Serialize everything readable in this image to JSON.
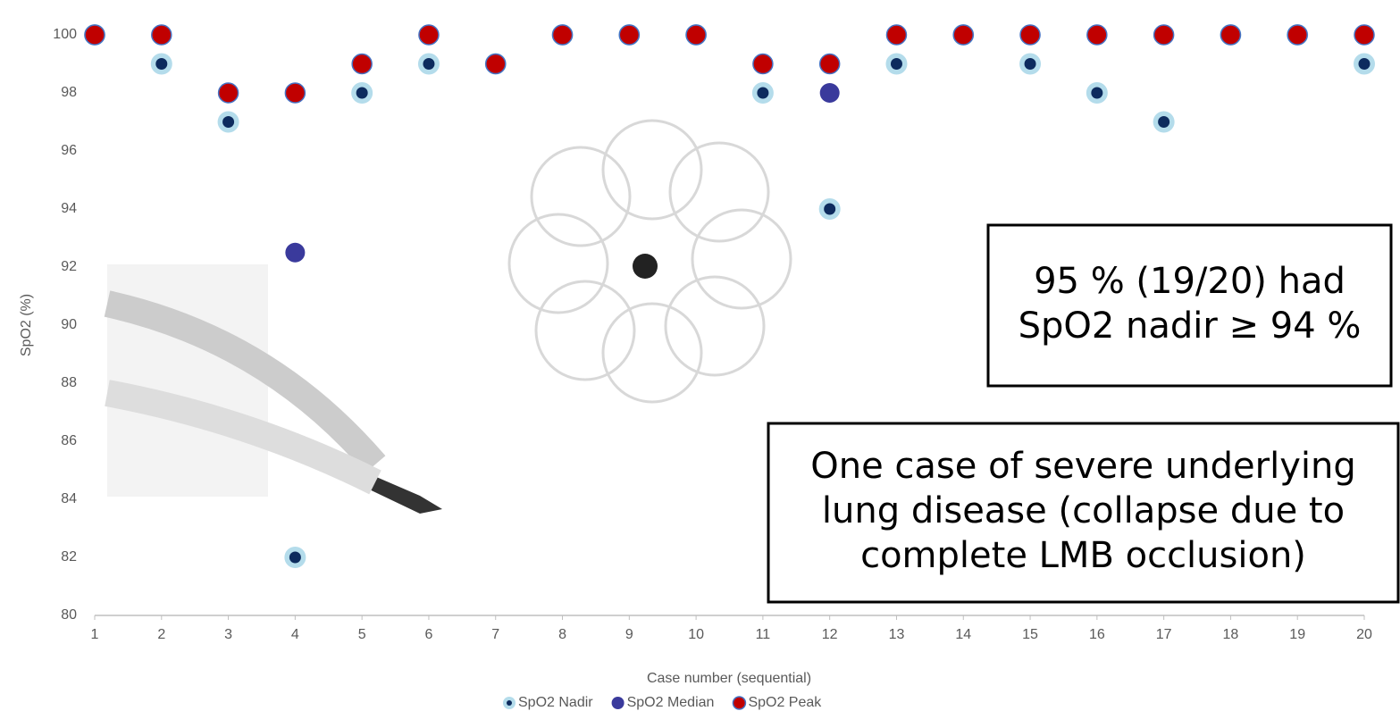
{
  "chart_data": {
    "type": "scatter",
    "x_label": "Case number (sequential)",
    "y_label": "SpO2 (%)",
    "x": [
      1,
      2,
      3,
      4,
      5,
      6,
      7,
      8,
      9,
      10,
      11,
      12,
      13,
      14,
      15,
      16,
      17,
      18,
      19,
      20
    ],
    "xlim": [
      1,
      20
    ],
    "xticks": [
      1,
      2,
      3,
      4,
      5,
      6,
      7,
      8,
      9,
      10,
      11,
      12,
      13,
      14,
      15,
      16,
      17,
      18,
      19,
      20
    ],
    "ylim": [
      80,
      100
    ],
    "yticks": [
      80,
      82,
      84,
      86,
      88,
      90,
      92,
      94,
      96,
      98,
      100
    ],
    "grid": false,
    "legend": "bottom",
    "series": [
      {
        "name": "SpO2 Nadir",
        "color": "#0d2b5e",
        "edge_color": "#b4dceb",
        "values": [
          100,
          99,
          97,
          82,
          98,
          99,
          99,
          100,
          100,
          100,
          98,
          94,
          99,
          100,
          99,
          98,
          97,
          100,
          100,
          99
        ]
      },
      {
        "name": "SpO2 Median",
        "color": "#3a3a9c",
        "values": [
          100,
          100,
          98,
          92.5,
          99,
          100,
          99,
          100,
          100,
          100,
          99,
          98,
          100,
          100,
          100,
          100,
          100,
          100,
          100,
          100
        ]
      },
      {
        "name": "SpO2 Peak",
        "color": "#c00000",
        "edge_color": "#4472c4",
        "values": [
          100,
          100,
          98,
          98,
          99,
          100,
          99,
          100,
          100,
          100,
          99,
          99,
          100,
          100,
          100,
          100,
          100,
          100,
          100,
          100
        ]
      }
    ],
    "annotations": [
      {
        "lines": [
          "95 % (19/20) had",
          "SpO2 nadir ≥ 94 %"
        ]
      },
      {
        "lines": [
          "One case of severe underlying",
          "lung disease (collapse due to",
          "complete LMB occlusion)"
        ]
      }
    ]
  }
}
